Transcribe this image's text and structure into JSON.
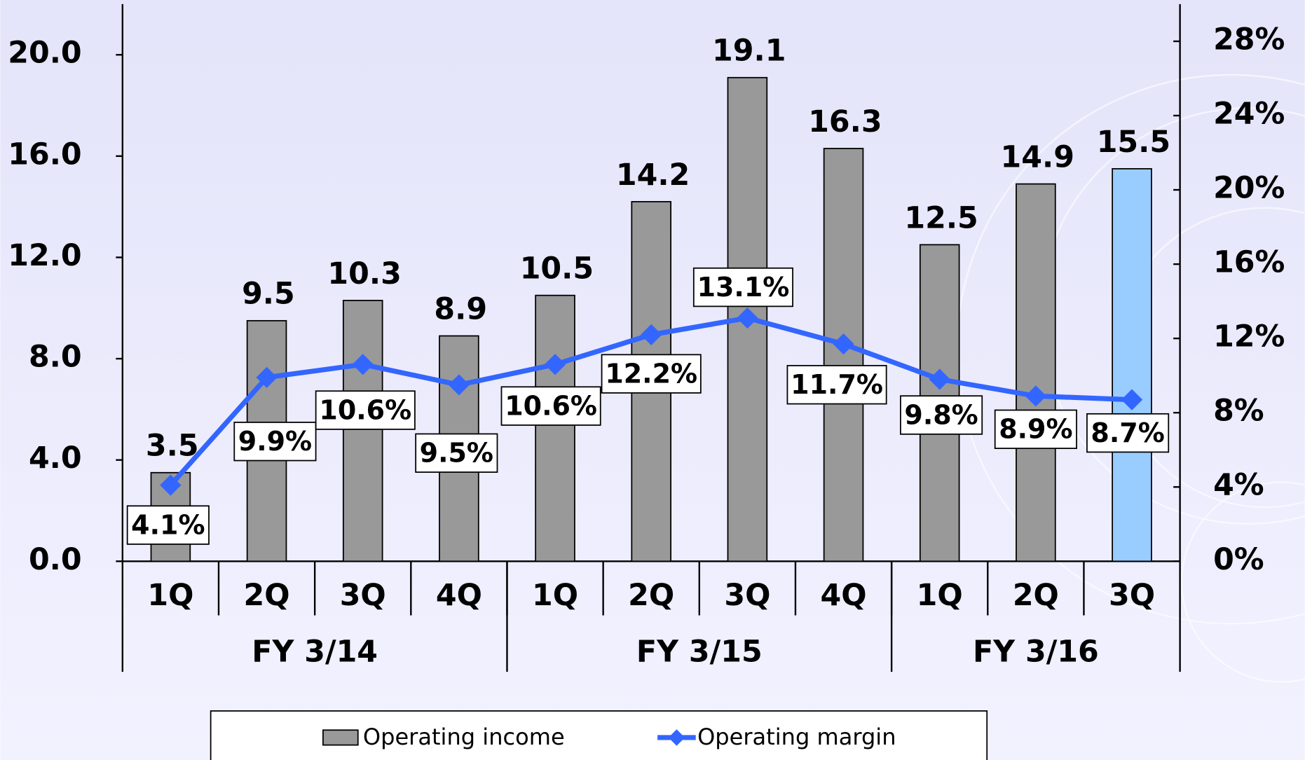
{
  "chart_data": {
    "type": "bar_line",
    "categories": [
      "1Q",
      "2Q",
      "3Q",
      "4Q",
      "1Q",
      "2Q",
      "3Q",
      "4Q",
      "1Q",
      "2Q",
      "3Q"
    ],
    "groups": [
      "FY 3/14",
      "FY 3/15",
      "FY 3/16"
    ],
    "series": [
      {
        "name": "Operating income",
        "type": "bar",
        "color": "#999999",
        "colors": [
          "#999999",
          "#999999",
          "#999999",
          "#999999",
          "#999999",
          "#999999",
          "#999999",
          "#999999",
          "#999999",
          "#999999",
          "#99ccff"
        ],
        "values": [
          3.5,
          9.5,
          10.3,
          8.9,
          10.5,
          14.2,
          19.1,
          16.3,
          12.5,
          14.9,
          15.5
        ]
      },
      {
        "name": "Operating margin",
        "type": "line",
        "axis": "y2",
        "color": "#3366ff",
        "values": [
          4.1,
          9.9,
          10.6,
          9.5,
          10.6,
          12.2,
          13.1,
          11.7,
          9.8,
          8.9,
          8.7
        ],
        "value_labels": [
          "4.1%",
          "9.9%",
          "10.6%",
          "9.5%",
          "10.6%",
          "12.2%",
          "13.1%",
          "11.7%",
          "9.8%",
          "8.9%",
          "8.7%"
        ]
      }
    ],
    "ylim": [
      0,
      22
    ],
    "yticks": [
      {
        "value": 0,
        "label": "0.0"
      },
      {
        "value": 4,
        "label": "4.0"
      },
      {
        "value": 8,
        "label": "8.0"
      },
      {
        "value": 12,
        "label": "12.0"
      },
      {
        "value": 16,
        "label": "16.0"
      },
      {
        "value": 20,
        "label": "20.0"
      }
    ],
    "y2lim": [
      0,
      30
    ],
    "y2ticks": [
      {
        "value": 0,
        "label": "0%"
      },
      {
        "value": 4,
        "label": "4%"
      },
      {
        "value": 8,
        "label": "8%"
      },
      {
        "value": 12,
        "label": "12%"
      },
      {
        "value": 16,
        "label": "16%"
      },
      {
        "value": 20,
        "label": "20%"
      },
      {
        "value": 24,
        "label": "24%"
      },
      {
        "value": 28,
        "label": "28%"
      }
    ],
    "legend": "bottom"
  }
}
